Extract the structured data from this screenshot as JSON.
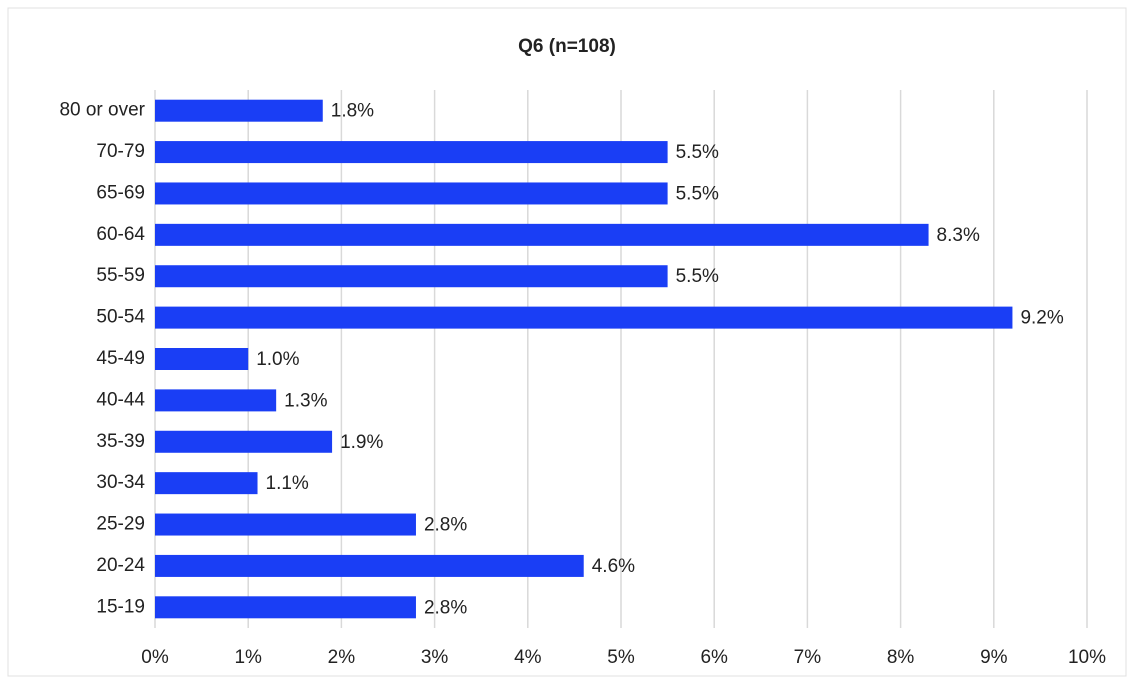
{
  "chart_data": {
    "type": "bar",
    "orientation": "horizontal",
    "title": "Q6 (n=108)",
    "categories": [
      "80 or over",
      "70-79",
      "65-69",
      "60-64",
      "55-59",
      "50-54",
      "45-49",
      "40-44",
      "35-39",
      "30-34",
      "25-29",
      "20-24",
      "15-19"
    ],
    "values": [
      1.8,
      5.5,
      5.5,
      8.3,
      5.5,
      9.2,
      1.0,
      1.3,
      1.9,
      1.1,
      2.8,
      4.6,
      2.8
    ],
    "value_labels": [
      "1.8%",
      "5.5%",
      "5.5%",
      "8.3%",
      "5.5%",
      "9.2%",
      "1.0%",
      "1.3%",
      "1.9%",
      "1.1%",
      "2.8%",
      "4.6%",
      "2.8%"
    ],
    "color": "#1a3ef5",
    "xlim": [
      0,
      10
    ],
    "xticks": [
      {
        "value": 0,
        "label": "0%"
      },
      {
        "value": 1,
        "label": "1%"
      },
      {
        "value": 2,
        "label": "2%"
      },
      {
        "value": 3,
        "label": "3%"
      },
      {
        "value": 4,
        "label": "4%"
      },
      {
        "value": 5,
        "label": "5%"
      },
      {
        "value": 6,
        "label": "6%"
      },
      {
        "value": 7,
        "label": "7%"
      },
      {
        "value": 8,
        "label": "8%"
      },
      {
        "value": 9,
        "label": "9%"
      },
      {
        "value": 10,
        "label": "10%"
      }
    ],
    "grid": true
  }
}
